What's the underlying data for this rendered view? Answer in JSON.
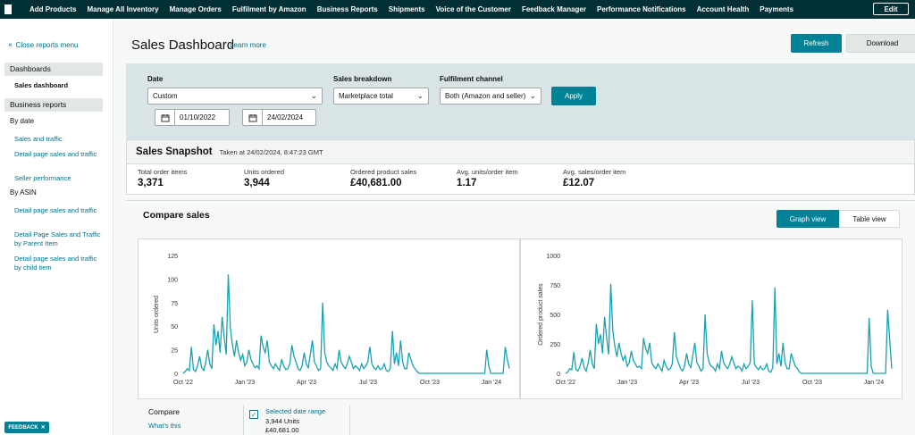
{
  "topnav": {
    "items": [
      "Add Products",
      "Manage All Inventory",
      "Manage Orders",
      "Fulfilment by Amazon",
      "Business Reports",
      "Shipments",
      "Voice of the Customer",
      "Feedback Manager",
      "Performance Notifications",
      "Account Health",
      "Payments"
    ],
    "edit_label": "Edit"
  },
  "sidebar": {
    "close_label": "Close reports menu",
    "dashboards_header": "Dashboards",
    "sales_dashboard": "Sales dashboard",
    "business_reports_header": "Business reports",
    "by_date": "By date",
    "by_date_items": [
      "Sales and traffic",
      "Detail page sales and traffic",
      "Seller performance"
    ],
    "by_asin": "By ASIN",
    "by_asin_items": [
      "Detail page sales and traffic",
      "Detail Page Sales and Traffic by Parent Item",
      "Detail page sales and traffic by child item"
    ],
    "feedback": "FEEDBACK"
  },
  "header": {
    "title": "Sales Dashboard",
    "learn_more": "Learn more",
    "refresh": "Refresh",
    "download": "Download"
  },
  "filters": {
    "date_label": "Date",
    "date_value": "Custom",
    "start_date": "01/10/2022",
    "end_date": "24/02/2024",
    "breakdown_label": "Sales breakdown",
    "breakdown_value": "Marketplace total",
    "channel_label": "Fulfilment channel",
    "channel_value": "Both (Amazon and seller)",
    "apply": "Apply"
  },
  "snapshot": {
    "title": "Sales Snapshot",
    "taken_at": "Taken at 24/02/2024, 8:47:23 GMT",
    "metrics": [
      {
        "label": "Total order items",
        "value": "3,371"
      },
      {
        "label": "Units ordered",
        "value": "3,944"
      },
      {
        "label": "Ordered product sales",
        "value": "£40,681.00"
      },
      {
        "label": "Avg. units/order item",
        "value": "1.17"
      },
      {
        "label": "Avg. sales/order item",
        "value": "£12.07"
      }
    ]
  },
  "compare": {
    "title": "Compare sales",
    "graph_view": "Graph view",
    "table_view": "Table view",
    "compare_label": "Compare",
    "whats_this": "What's this",
    "legend_name": "Selected date range",
    "legend_units": "3,944 Units",
    "legend_sales": "£40,681.00"
  },
  "colors": {
    "accent": "#008296",
    "line": "#17a2b2",
    "nav": "#002f36"
  },
  "chart_data": [
    {
      "type": "line",
      "ylabel": "Units ordered",
      "ylim": [
        0,
        125
      ],
      "yticks": [
        "0",
        "25",
        "50",
        "75",
        "100",
        "125"
      ],
      "xticks": [
        "Oct '22",
        "Jan '23",
        "Apr '23",
        "Jul '23",
        "Oct '23",
        "Jan '24"
      ],
      "series": [
        {
          "values": [
            0,
            2,
            5,
            3,
            28,
            4,
            2,
            8,
            18,
            6,
            3,
            12,
            25,
            10,
            5,
            52,
            30,
            45,
            22,
            60,
            38,
            20,
            105,
            48,
            30,
            18,
            35,
            22,
            14,
            20,
            8,
            12,
            25,
            15,
            10,
            6,
            8,
            5,
            40,
            28,
            22,
            35,
            12,
            8,
            5,
            10,
            6,
            3,
            15,
            8,
            4,
            5,
            10,
            30,
            18,
            12,
            5,
            3,
            8,
            22,
            10,
            6,
            20,
            35,
            12,
            8,
            3,
            5,
            75,
            22,
            12,
            8,
            6,
            3,
            10,
            5,
            25,
            12,
            8,
            5,
            10,
            18,
            12,
            5,
            8,
            6,
            3,
            10,
            5,
            8,
            12,
            28,
            10,
            6,
            4,
            8,
            4,
            5,
            10,
            3,
            2,
            6,
            45,
            10,
            22,
            8,
            35,
            12,
            5,
            5,
            22,
            15,
            8,
            5,
            2,
            0,
            0,
            0,
            0,
            0,
            0,
            0,
            0,
            0,
            0,
            0,
            0,
            0,
            0,
            0,
            0,
            0,
            0,
            0,
            0,
            0,
            0,
            0,
            0,
            0,
            0,
            0,
            0,
            0,
            0,
            0,
            0,
            0,
            25,
            8,
            0,
            0,
            0,
            0,
            0,
            0,
            0,
            28,
            15,
            5
          ]
        }
      ]
    },
    {
      "type": "line",
      "ylabel": "Ordered product sales",
      "ylim": [
        0,
        1000
      ],
      "yticks": [
        "0",
        "250",
        "500",
        "750",
        "1000"
      ],
      "xticks": [
        "Oct '22",
        "Jan '23",
        "Apr '23",
        "Jul '23",
        "Oct '23",
        "Jan '24"
      ],
      "series": [
        {
          "values": [
            0,
            10,
            40,
            30,
            180,
            35,
            20,
            60,
            130,
            50,
            20,
            90,
            200,
            80,
            40,
            420,
            250,
            330,
            170,
            480,
            300,
            160,
            760,
            360,
            230,
            140,
            260,
            170,
            110,
            150,
            60,
            90,
            190,
            110,
            80,
            50,
            60,
            40,
            300,
            210,
            170,
            260,
            90,
            60,
            40,
            80,
            50,
            20,
            110,
            60,
            30,
            40,
            80,
            350,
            140,
            90,
            40,
            20,
            60,
            170,
            80,
            50,
            150,
            260,
            90,
            60,
            20,
            40,
            500,
            170,
            90,
            60,
            50,
            20,
            80,
            40,
            190,
            90,
            60,
            40,
            80,
            140,
            90,
            40,
            60,
            50,
            20,
            80,
            40,
            60,
            90,
            620,
            80,
            50,
            30,
            60,
            30,
            40,
            80,
            20,
            10,
            50,
            730,
            80,
            170,
            60,
            260,
            90,
            40,
            40,
            170,
            110,
            60,
            40,
            10,
            0,
            0,
            0,
            0,
            0,
            0,
            0,
            0,
            0,
            0,
            0,
            0,
            0,
            0,
            0,
            0,
            0,
            0,
            0,
            0,
            0,
            0,
            0,
            0,
            0,
            0,
            0,
            0,
            0,
            0,
            0,
            0,
            0,
            470,
            60,
            0,
            0,
            0,
            0,
            0,
            0,
            0,
            540,
            280,
            40
          ]
        }
      ]
    }
  ]
}
